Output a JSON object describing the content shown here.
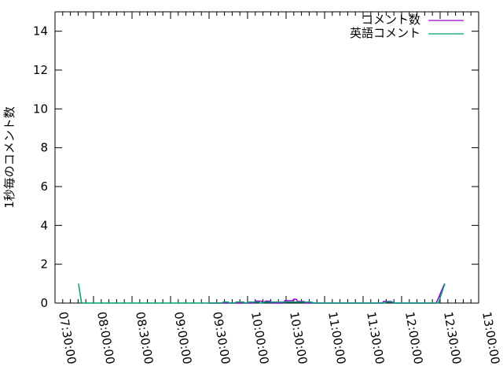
{
  "chart_data": {
    "type": "line",
    "title": "",
    "xlabel": "",
    "ylabel": "1秒毎のコメント数",
    "xlim": [
      "07:30:00",
      "13:00:00"
    ],
    "ylim": [
      0,
      15
    ],
    "x_ticks": [
      "07:30:00",
      "08:00:00",
      "08:30:00",
      "09:00:00",
      "09:30:00",
      "10:00:00",
      "10:30:00",
      "11:00:00",
      "11:30:00",
      "12:00:00",
      "12:30:00",
      "13:00:00"
    ],
    "y_ticks": [
      "0",
      "2",
      "4",
      "6",
      "8",
      "10",
      "12",
      "14"
    ],
    "grid": false,
    "legend_position": "top-right",
    "series": [
      {
        "name": "コメント数",
        "color": "#9400d3",
        "points": [
          [
            "09:30:00",
            0
          ],
          [
            "10:05:00",
            0
          ],
          [
            "10:06:00",
            0.1
          ],
          [
            "10:11:00",
            0.1
          ],
          [
            "10:12:00",
            0
          ],
          [
            "10:14:00",
            0.1
          ],
          [
            "10:18:00",
            0.1
          ],
          [
            "10:19:00",
            0
          ],
          [
            "10:28:00",
            0
          ],
          [
            "10:29:00",
            0.12
          ],
          [
            "10:35:00",
            0.12
          ],
          [
            "10:36:00",
            0.2
          ],
          [
            "10:38:00",
            0.2
          ],
          [
            "10:39:00",
            0.08
          ],
          [
            "10:44:00",
            0.08
          ],
          [
            "10:45:00",
            0
          ],
          [
            "11:45:00",
            0
          ],
          [
            "11:46:00",
            0.08
          ],
          [
            "11:52:00",
            0.08
          ],
          [
            "11:53:00",
            0
          ],
          [
            "12:27:00",
            0
          ],
          [
            "12:33:30",
            1
          ]
        ]
      },
      {
        "name": "英語コメント",
        "color": "#009e73",
        "points": [
          [
            "07:48:20",
            1
          ],
          [
            "07:50:40",
            0
          ],
          [
            "09:40:00",
            0
          ],
          [
            "09:41:00",
            0.05
          ],
          [
            "09:45:00",
            0.05
          ],
          [
            "09:46:00",
            0
          ],
          [
            "09:50:00",
            0
          ],
          [
            "09:51:00",
            0.05
          ],
          [
            "09:57:00",
            0.05
          ],
          [
            "09:58:00",
            0
          ],
          [
            "10:00:00",
            0
          ],
          [
            "10:01:00",
            0.05
          ],
          [
            "10:09:00",
            0.05
          ],
          [
            "10:10:00",
            0
          ],
          [
            "10:12:00",
            0
          ],
          [
            "10:13:00",
            0.05
          ],
          [
            "10:50:00",
            0.05
          ],
          [
            "10:51:00",
            0
          ],
          [
            "11:47:00",
            0
          ],
          [
            "11:48:00",
            0.05
          ],
          [
            "11:53:00",
            0.05
          ],
          [
            "11:54:00",
            0
          ],
          [
            "12:28:40",
            0
          ],
          [
            "12:33:40",
            1
          ]
        ]
      }
    ]
  }
}
